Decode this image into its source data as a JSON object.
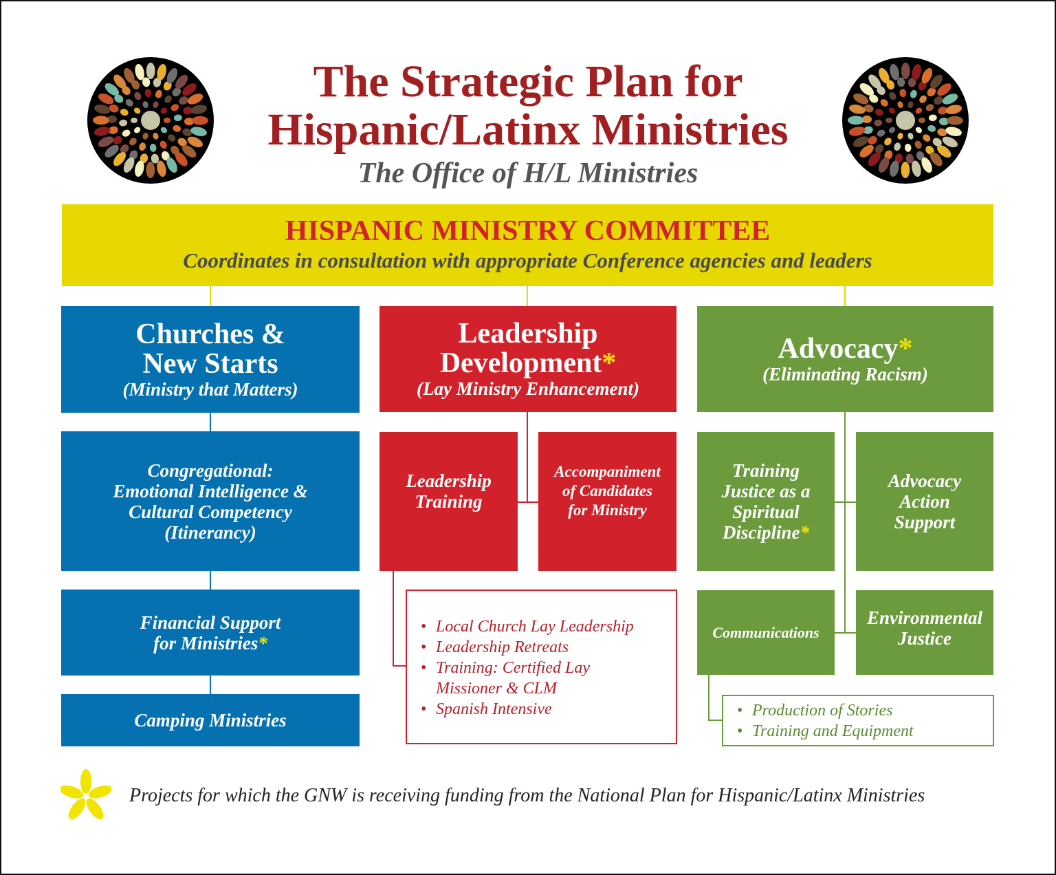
{
  "header": {
    "title_line1": "The Strategic Plan for",
    "title_line2": "Hispanic/Latinx Ministries",
    "subtitle": "The Office of H/L Ministries"
  },
  "committee": {
    "title": "HISPANIC MINISTRY COMMITTEE",
    "subtitle": "Coordinates in consultation with appropriate Conference agencies and leaders"
  },
  "asterisk": "*",
  "columns": {
    "churches": {
      "title_line1": "Churches &",
      "title_line2": "New Starts",
      "subtitle": "(Ministry that Matters)",
      "items": [
        {
          "lines": [
            "Congregational:",
            "Emotional Intelligence &",
            "Cultural Competency",
            "(Itinerancy)"
          ]
        },
        {
          "lines": [
            "Financial Support",
            "for Ministries"
          ]
        },
        {
          "lines": [
            "Camping Ministries"
          ]
        }
      ]
    },
    "leadership": {
      "title_line1": "Leadership",
      "title_line2": "Development",
      "subtitle": "(Lay Ministry Enhancement)",
      "items": [
        {
          "lines": [
            "Leadership",
            "Training"
          ]
        },
        {
          "lines": [
            "Accompaniment",
            "of Candidates",
            "for Ministry"
          ]
        }
      ],
      "list": [
        "Local Church Lay Leadership",
        "Leadership Retreats",
        "Training: Certified Lay Missioner & CLM",
        "Spanish Intensive"
      ]
    },
    "advocacy": {
      "title": "Advocacy",
      "subtitle": "(Eliminating Racism)",
      "items": [
        {
          "lines": [
            "Training",
            "Justice as a",
            "Spiritual",
            "Discipline"
          ]
        },
        {
          "lines": [
            "Advocacy",
            "Action",
            "Support"
          ]
        },
        {
          "lines": [
            "Communications"
          ]
        },
        {
          "lines": [
            "Environmental",
            "Justice"
          ]
        }
      ],
      "list": [
        "Production of Stories",
        "Training and Equipment"
      ]
    }
  },
  "footer": {
    "note": "Projects for which the GNW is receiving funding from the National Plan for Hispanic/Latinx Ministries"
  },
  "colors": {
    "blue": "#0571b0",
    "red": "#d1222b",
    "green": "#6b9b3d",
    "yellow": "#e6d800",
    "title": "#a11f20"
  }
}
